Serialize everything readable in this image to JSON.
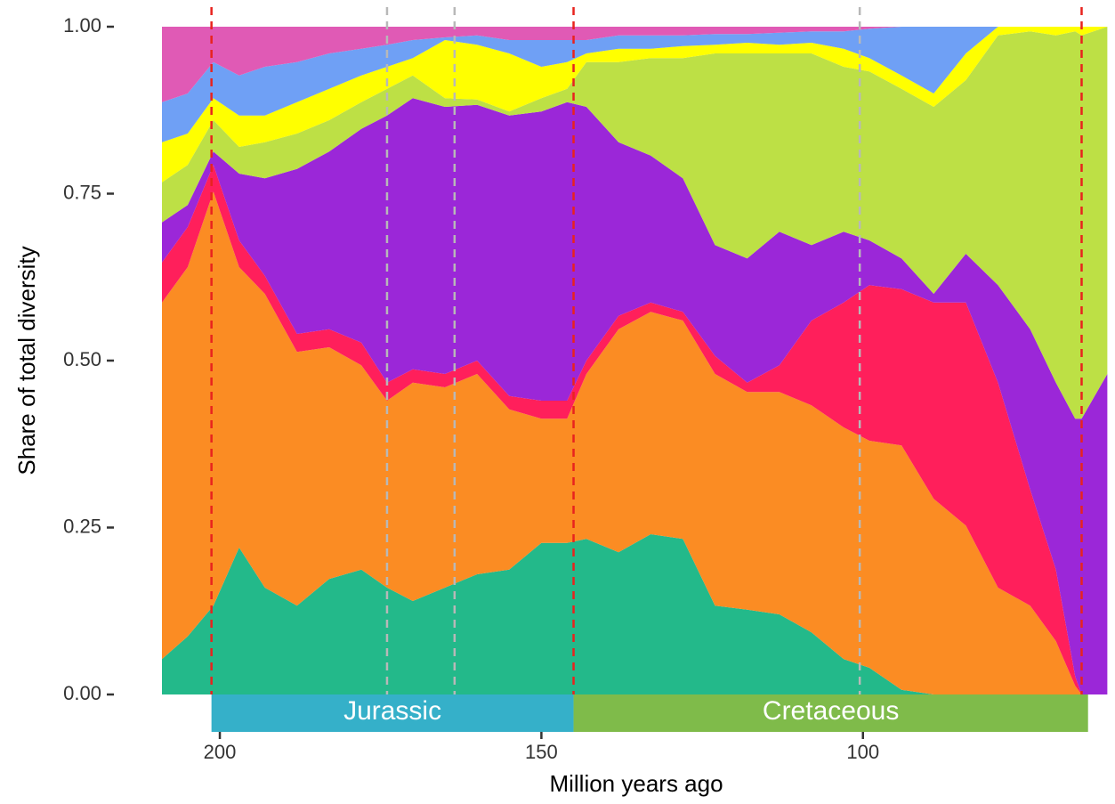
{
  "chart_data": {
    "type": "stacked_area",
    "x_label": "Million years ago",
    "y_label": "Share of total diversity",
    "xlim": [
      209,
      61.5
    ],
    "ylim": [
      0,
      1
    ],
    "xticks": [
      200,
      150,
      100
    ],
    "yticks": [
      {
        "value": 0,
        "label": "0.00"
      },
      {
        "value": 0.25,
        "label": "0.25"
      },
      {
        "value": 0.5,
        "label": "0.50"
      },
      {
        "value": 0.75,
        "label": "0.75"
      },
      {
        "value": 1,
        "label": "1.00"
      }
    ],
    "x": [
      209,
      205,
      201,
      197,
      193,
      188,
      183,
      178,
      174,
      170,
      165,
      160,
      155,
      150,
      146,
      143,
      138,
      133,
      128,
      123,
      118,
      113,
      108,
      103,
      99,
      94,
      89,
      84,
      79,
      74,
      70,
      67,
      66,
      62
    ],
    "series": [
      {
        "color": "#23b98a",
        "values": [
          0.053,
          0.087,
          0.133,
          0.22,
          0.16,
          0.133,
          0.173,
          0.187,
          0.16,
          0.14,
          0.16,
          0.18,
          0.187,
          0.227,
          0.227,
          0.233,
          0.213,
          0.24,
          0.233,
          0.133,
          0.127,
          0.12,
          0.093,
          0.053,
          0.04,
          0.007,
          0,
          0,
          0,
          0,
          0,
          0,
          0,
          0
        ]
      },
      {
        "color": "#fb8c23",
        "values": [
          0.534,
          0.553,
          0.62,
          0.42,
          0.44,
          0.38,
          0.347,
          0.306,
          0.28,
          0.327,
          0.3,
          0.3,
          0.24,
          0.186,
          0.186,
          0.247,
          0.334,
          0.333,
          0.327,
          0.347,
          0.326,
          0.333,
          0.34,
          0.347,
          0.34,
          0.366,
          0.293,
          0.253,
          0.16,
          0.133,
          0.08,
          0.013,
          0,
          0
        ]
      },
      {
        "color": "#ff1f5b",
        "values": [
          0.06,
          0.06,
          0.04,
          0.04,
          0.027,
          0.027,
          0.027,
          0.034,
          0.027,
          0.02,
          0.02,
          0.02,
          0.02,
          0.027,
          0.027,
          0.02,
          0.02,
          0.014,
          0.013,
          0.027,
          0.014,
          0.04,
          0.127,
          0.187,
          0.233,
          0.234,
          0.294,
          0.334,
          0.307,
          0.174,
          0.107,
          0.014,
          0,
          0
        ]
      },
      {
        "color": "#9b27d8",
        "values": [
          0.06,
          0.033,
          0.02,
          0.1,
          0.146,
          0.247,
          0.266,
          0.32,
          0.4,
          0.406,
          0.4,
          0.383,
          0.42,
          0.433,
          0.447,
          0.38,
          0.26,
          0.22,
          0.2,
          0.166,
          0.186,
          0.2,
          0.113,
          0.106,
          0.067,
          0.046,
          0.013,
          0.073,
          0.146,
          0.24,
          0.28,
          0.386,
          0.413,
          0.48
        ]
      },
      {
        "color": "#bde045",
        "values": [
          0.06,
          0.06,
          0.047,
          0.04,
          0.054,
          0.053,
          0.047,
          0.04,
          0.04,
          0.034,
          0.013,
          0.008,
          0.006,
          0.02,
          0.02,
          0.067,
          0.12,
          0.146,
          0.18,
          0.287,
          0.307,
          0.267,
          0.287,
          0.247,
          0.253,
          0.254,
          0.28,
          0.26,
          0.374,
          0.446,
          0.52,
          0.58,
          0.574,
          0.52
        ]
      },
      {
        "color": "#ffff00",
        "values": [
          0.06,
          0.047,
          0.033,
          0.047,
          0.04,
          0.047,
          0.047,
          0.04,
          0.033,
          0.026,
          0.087,
          0.082,
          0.087,
          0.047,
          0.04,
          0.013,
          0.02,
          0.014,
          0.018,
          0.013,
          0.016,
          0.013,
          0.016,
          0.027,
          0.02,
          0.02,
          0.02,
          0.04,
          0.013,
          0.007,
          0.013,
          0.007,
          0.013,
          0
        ]
      },
      {
        "color": "#6fa0f5",
        "values": [
          0.06,
          0.06,
          0.054,
          0.06,
          0.073,
          0.06,
          0.053,
          0.04,
          0.033,
          0.027,
          0.004,
          0.014,
          0.02,
          0.04,
          0.033,
          0.02,
          0.02,
          0.02,
          0.016,
          0.016,
          0.013,
          0.018,
          0.017,
          0.026,
          0.044,
          0.073,
          0.1,
          0.04,
          0,
          0,
          0,
          0,
          0,
          0
        ]
      },
      {
        "color": "#e05ab5",
        "values": [
          0.113,
          0.1,
          0.053,
          0.073,
          0.06,
          0.053,
          0.04,
          0.033,
          0.027,
          0.02,
          0.016,
          0.013,
          0.02,
          0.02,
          0.02,
          0.02,
          0.013,
          0.013,
          0.013,
          0.011,
          0.011,
          0.009,
          0.007,
          0.007,
          0.003,
          0,
          0,
          0,
          0,
          0,
          0,
          0,
          0,
          0
        ]
      }
    ],
    "vlines": [
      {
        "x": 201.3,
        "color": "#e8231e"
      },
      {
        "x": 145,
        "color": "#e8231e"
      },
      {
        "x": 66,
        "color": "#e8231e"
      },
      {
        "x": 174,
        "color": "#b8b8b8"
      },
      {
        "x": 163.5,
        "color": "#b8b8b8"
      },
      {
        "x": 100.5,
        "color": "#b8b8b8"
      }
    ],
    "periods": [
      {
        "name": "Jurassic",
        "start": 201.3,
        "end": 145,
        "color": "#35b0c9"
      },
      {
        "name": "Cretaceous",
        "start": 145,
        "end": 65,
        "color": "#7fbb4a"
      }
    ]
  }
}
